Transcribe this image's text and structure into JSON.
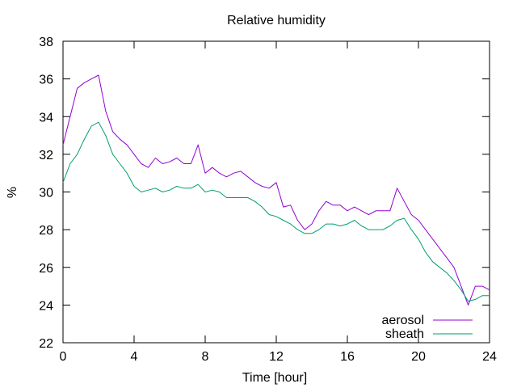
{
  "chart_data": {
    "type": "line",
    "title": "Relative humidity",
    "xlabel": "Time [hour]",
    "ylabel": "%",
    "xlim": [
      0,
      24
    ],
    "ylim": [
      22,
      38
    ],
    "xticks": [
      0,
      4,
      8,
      12,
      16,
      20,
      24
    ],
    "yticks": [
      22,
      24,
      26,
      28,
      30,
      32,
      34,
      36,
      38
    ],
    "grid": false,
    "legend_position": "bottom-right",
    "series": [
      {
        "name": "aerosol",
        "color": "#9400d3",
        "x": [
          0,
          0.4,
          0.8,
          1.2,
          1.6,
          2.0,
          2.4,
          2.8,
          3.2,
          3.6,
          4.0,
          4.4,
          4.8,
          5.2,
          5.6,
          6.0,
          6.4,
          6.8,
          7.2,
          7.6,
          8.0,
          8.4,
          8.8,
          9.2,
          9.6,
          10.0,
          10.4,
          10.8,
          11.2,
          11.6,
          12.0,
          12.4,
          12.8,
          13.2,
          13.6,
          14.0,
          14.4,
          14.8,
          15.2,
          15.6,
          16.0,
          16.4,
          16.8,
          17.2,
          17.6,
          18.0,
          18.4,
          18.8,
          19.2,
          19.6,
          20.0,
          20.4,
          20.8,
          21.2,
          21.6,
          22.0,
          22.4,
          22.8,
          23.2,
          23.6,
          24.0
        ],
        "y": [
          32.5,
          34.0,
          35.5,
          35.8,
          36.0,
          36.2,
          34.3,
          33.2,
          32.8,
          32.5,
          32.0,
          31.5,
          31.3,
          31.8,
          31.5,
          31.6,
          31.8,
          31.5,
          31.5,
          32.5,
          31.0,
          31.3,
          31.0,
          30.8,
          31.0,
          31.1,
          30.8,
          30.5,
          30.3,
          30.2,
          30.5,
          29.2,
          29.3,
          28.5,
          28.0,
          28.3,
          29.0,
          29.5,
          29.3,
          29.3,
          29.0,
          29.2,
          29.0,
          28.8,
          29.0,
          29.0,
          29.0,
          30.2,
          29.5,
          28.8,
          28.5,
          28.0,
          27.5,
          27.0,
          26.5,
          26.0,
          25.0,
          24.0,
          25.0,
          25.0,
          24.8
        ]
      },
      {
        "name": "sheath",
        "color": "#009e73",
        "x": [
          0,
          0.4,
          0.8,
          1.2,
          1.6,
          2.0,
          2.4,
          2.8,
          3.2,
          3.6,
          4.0,
          4.4,
          4.8,
          5.2,
          5.6,
          6.0,
          6.4,
          6.8,
          7.2,
          7.6,
          8.0,
          8.4,
          8.8,
          9.2,
          9.6,
          10.0,
          10.4,
          10.8,
          11.2,
          11.6,
          12.0,
          12.4,
          12.8,
          13.2,
          13.6,
          14.0,
          14.4,
          14.8,
          15.2,
          15.6,
          16.0,
          16.4,
          16.8,
          17.2,
          17.6,
          18.0,
          18.4,
          18.8,
          19.2,
          19.6,
          20.0,
          20.4,
          20.8,
          21.2,
          21.6,
          22.0,
          22.4,
          22.8,
          23.2,
          23.6,
          24.0
        ],
        "y": [
          30.5,
          31.5,
          32.0,
          32.8,
          33.5,
          33.7,
          33.0,
          32.0,
          31.5,
          31.0,
          30.3,
          30.0,
          30.1,
          30.2,
          30.0,
          30.1,
          30.3,
          30.2,
          30.2,
          30.4,
          30.0,
          30.1,
          30.0,
          29.7,
          29.7,
          29.7,
          29.7,
          29.5,
          29.2,
          28.8,
          28.7,
          28.5,
          28.3,
          28.0,
          27.8,
          27.8,
          28.0,
          28.3,
          28.3,
          28.2,
          28.3,
          28.5,
          28.2,
          28.0,
          28.0,
          28.0,
          28.2,
          28.5,
          28.6,
          28.0,
          27.5,
          26.8,
          26.3,
          26.0,
          25.7,
          25.3,
          24.8,
          24.2,
          24.3,
          24.5,
          24.5
        ]
      }
    ]
  }
}
